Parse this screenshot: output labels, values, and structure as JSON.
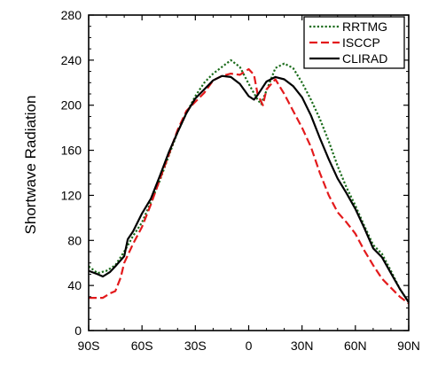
{
  "chart_data": {
    "type": "line",
    "title": "",
    "xlabel": "",
    "ylabel": "Shortwave Radiation",
    "xlim": [
      -90,
      90
    ],
    "ylim": [
      0,
      280
    ],
    "grid": false,
    "legend_position": "top-right",
    "x_ticks": [
      {
        "value": -90,
        "label": "90S"
      },
      {
        "value": -60,
        "label": "60S"
      },
      {
        "value": -30,
        "label": "30S"
      },
      {
        "value": 0,
        "label": "0"
      },
      {
        "value": 30,
        "label": "30N"
      },
      {
        "value": 60,
        "label": "60N"
      },
      {
        "value": 90,
        "label": "90N"
      }
    ],
    "y_ticks": [
      0,
      40,
      80,
      120,
      160,
      200,
      240,
      280
    ],
    "series": [
      {
        "name": "RRTMG",
        "color": "#1a6b1a",
        "style": "dotted",
        "points": [
          [
            -90,
            57
          ],
          [
            -85,
            51
          ],
          [
            -80,
            53
          ],
          [
            -75,
            58
          ],
          [
            -70,
            70
          ],
          [
            -65,
            84
          ],
          [
            -60,
            96
          ],
          [
            -55,
            114
          ],
          [
            -50,
            133
          ],
          [
            -45,
            155
          ],
          [
            -40,
            176
          ],
          [
            -35,
            193
          ],
          [
            -30,
            208
          ],
          [
            -25,
            220
          ],
          [
            -20,
            228
          ],
          [
            -15,
            234
          ],
          [
            -10,
            240
          ],
          [
            -5,
            234
          ],
          [
            0,
            219
          ],
          [
            5,
            205
          ],
          [
            7,
            201
          ],
          [
            10,
            213
          ],
          [
            15,
            233
          ],
          [
            20,
            237
          ],
          [
            25,
            233
          ],
          [
            30,
            220
          ],
          [
            35,
            205
          ],
          [
            40,
            188
          ],
          [
            45,
            168
          ],
          [
            50,
            146
          ],
          [
            55,
            127
          ],
          [
            60,
            111
          ],
          [
            65,
            93
          ],
          [
            70,
            76
          ],
          [
            75,
            68
          ],
          [
            80,
            53
          ],
          [
            85,
            37
          ],
          [
            90,
            25
          ]
        ]
      },
      {
        "name": "ISCCP",
        "color": "#e31a1c",
        "style": "dashed",
        "points": [
          [
            -90,
            29
          ],
          [
            -85,
            29
          ],
          [
            -82,
            29
          ],
          [
            -78,
            33
          ],
          [
            -75,
            35
          ],
          [
            -72,
            47
          ],
          [
            -70,
            60
          ],
          [
            -65,
            77
          ],
          [
            -60,
            92
          ],
          [
            -55,
            112
          ],
          [
            -50,
            134
          ],
          [
            -45,
            156
          ],
          [
            -40,
            178
          ],
          [
            -35,
            195
          ],
          [
            -30,
            203
          ],
          [
            -25,
            211
          ],
          [
            -20,
            222
          ],
          [
            -15,
            226
          ],
          [
            -10,
            228
          ],
          [
            -5,
            227
          ],
          [
            0,
            232
          ],
          [
            3,
            227
          ],
          [
            5,
            210
          ],
          [
            8,
            200
          ],
          [
            10,
            214
          ],
          [
            15,
            223
          ],
          [
            20,
            210
          ],
          [
            25,
            195
          ],
          [
            30,
            180
          ],
          [
            35,
            163
          ],
          [
            40,
            140
          ],
          [
            45,
            120
          ],
          [
            50,
            105
          ],
          [
            55,
            96
          ],
          [
            60,
            86
          ],
          [
            65,
            71
          ],
          [
            70,
            58
          ],
          [
            75,
            46
          ],
          [
            80,
            38
          ],
          [
            85,
            30
          ],
          [
            90,
            24
          ]
        ]
      },
      {
        "name": "CLIRAD",
        "color": "#000000",
        "style": "solid",
        "points": [
          [
            -90,
            53
          ],
          [
            -85,
            50
          ],
          [
            -82,
            48
          ],
          [
            -78,
            52
          ],
          [
            -75,
            57
          ],
          [
            -70,
            66
          ],
          [
            -68,
            81
          ],
          [
            -65,
            88
          ],
          [
            -60,
            104
          ],
          [
            -55,
            117
          ],
          [
            -50,
            137
          ],
          [
            -45,
            158
          ],
          [
            -40,
            176
          ],
          [
            -35,
            193
          ],
          [
            -30,
            206
          ],
          [
            -25,
            214
          ],
          [
            -20,
            222
          ],
          [
            -15,
            226
          ],
          [
            -10,
            225
          ],
          [
            -5,
            219
          ],
          [
            0,
            208
          ],
          [
            3,
            205
          ],
          [
            5,
            209
          ],
          [
            10,
            221
          ],
          [
            15,
            225
          ],
          [
            20,
            223
          ],
          [
            25,
            217
          ],
          [
            30,
            207
          ],
          [
            35,
            191
          ],
          [
            40,
            171
          ],
          [
            45,
            152
          ],
          [
            50,
            135
          ],
          [
            55,
            122
          ],
          [
            60,
            108
          ],
          [
            65,
            91
          ],
          [
            70,
            73
          ],
          [
            75,
            65
          ],
          [
            80,
            51
          ],
          [
            85,
            37
          ],
          [
            90,
            25
          ]
        ]
      }
    ]
  }
}
